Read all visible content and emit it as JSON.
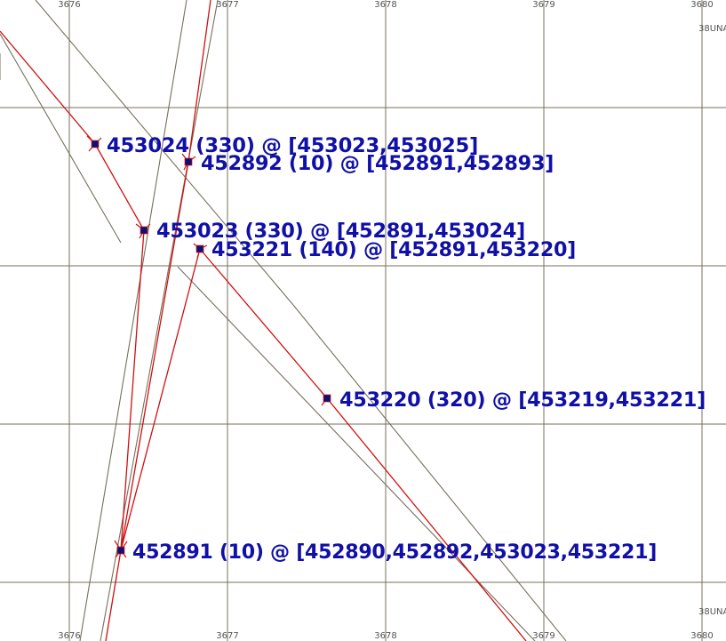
{
  "colors": {
    "grid": "#77705e",
    "road": "#77705e",
    "link": "#d01010",
    "node": "#101070",
    "label": "#1010a8"
  },
  "grid": {
    "x_labels_top": [
      "3676",
      "3677",
      "3678",
      "3679",
      "3680"
    ],
    "x_labels_bottom": [
      "3676",
      "3677",
      "3678",
      "3679",
      "3680"
    ],
    "zone_labels": [
      "38UNA",
      "38UNA"
    ]
  },
  "nodes": [
    {
      "id": "453024",
      "label": "453024  (330)  @  [453023,453025]"
    },
    {
      "id": "452892",
      "label": "452892  (10)  @  [452891,452893]"
    },
    {
      "id": "453023",
      "label": "453023  (330)  @  [452891,453024]"
    },
    {
      "id": "453221",
      "label": "453221  (140)  @  [452891,453220]"
    },
    {
      "id": "453220",
      "label": "453220  (320)  @  [453219,453221]"
    },
    {
      "id": "452891",
      "label": "452891  (10)  @  [452890,452892,453023,453221]"
    }
  ]
}
